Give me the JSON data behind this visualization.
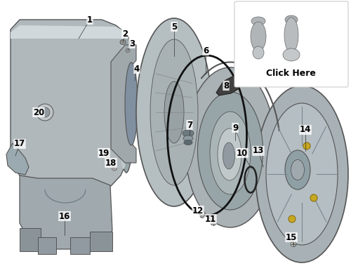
{
  "background_color": "#ffffff",
  "main_color": "#9aa5a8",
  "line_color": "#555555",
  "label_color": "#000000",
  "label_fontsize": 8.5,
  "figsize": [
    5.0,
    3.79
  ],
  "dpi": 100,
  "click_here_text": "Click Here",
  "parts": {
    "1": [
      128,
      28,
      112,
      55
    ],
    "2": [
      178,
      48,
      175,
      60
    ],
    "3": [
      188,
      62,
      182,
      72
    ],
    "4": [
      195,
      98,
      192,
      115
    ],
    "5": [
      248,
      38,
      248,
      80
    ],
    "6": [
      293,
      72,
      293,
      105
    ],
    "7": [
      270,
      178,
      270,
      192
    ],
    "8": [
      322,
      122,
      330,
      130
    ],
    "9": [
      335,
      182,
      335,
      200
    ],
    "10": [
      345,
      218,
      358,
      240
    ],
    "11": [
      300,
      312,
      305,
      318
    ],
    "12": [
      282,
      300,
      288,
      308
    ],
    "13": [
      368,
      215,
      375,
      238
    ],
    "14": [
      435,
      185,
      435,
      215
    ],
    "15": [
      415,
      338,
      418,
      348
    ],
    "16": [
      92,
      308,
      92,
      335
    ],
    "17": [
      28,
      205,
      22,
      222
    ],
    "18": [
      158,
      232,
      163,
      240
    ],
    "19": [
      148,
      218,
      155,
      227
    ],
    "20": [
      55,
      160,
      62,
      163
    ]
  }
}
